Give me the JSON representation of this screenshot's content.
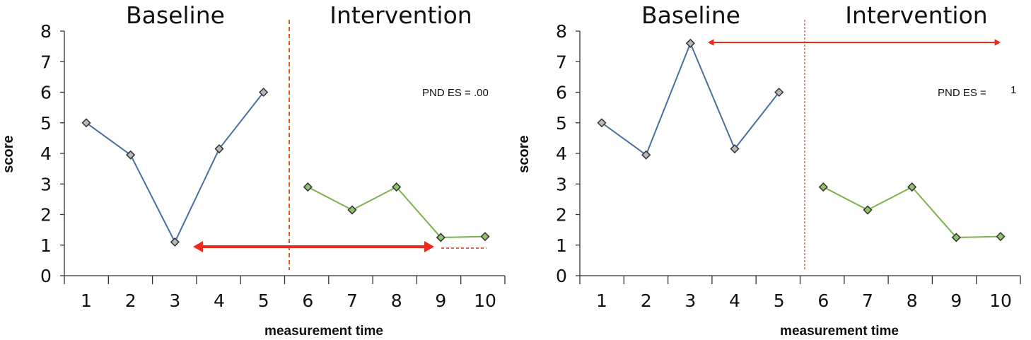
{
  "colors": {
    "baseline_line": "#4a6fa5",
    "intervention_line": "#7fb24a",
    "marker_fill_baseline": "#b8b8b8",
    "marker_fill_intervention": "#8fc26a",
    "phase_line_left": "#e06020",
    "phase_line_right": "#c02020",
    "arrow_red": "#ee2a1a",
    "axis": "#333333",
    "text": "#111111"
  },
  "chart_data": [
    {
      "type": "line",
      "title": "",
      "phases": [
        "Baseline",
        "Intervention"
      ],
      "xlabel": "measurement time",
      "ylabel": "score",
      "x_ticks": [
        "1",
        "2",
        "3",
        "4",
        "5",
        "6",
        "7",
        "8",
        "9",
        "10"
      ],
      "y_ticks": [
        "0",
        "1",
        "2",
        "3",
        "4",
        "5",
        "6",
        "7",
        "8"
      ],
      "ylim": [
        0,
        8
      ],
      "series": [
        {
          "x": [
            1,
            2,
            3,
            4,
            5
          ],
          "values": [
            5,
            3.95,
            1.1,
            4.15,
            6
          ]
        },
        {
          "x": [
            6,
            7,
            8,
            9,
            10
          ],
          "values": [
            2.9,
            2.15,
            2.9,
            1.25,
            1.28
          ]
        }
      ],
      "annotation": "PND ES = .00"
    },
    {
      "type": "line",
      "title": "",
      "phases": [
        "Baseline",
        "Intervention"
      ],
      "xlabel": "measurement time",
      "ylabel": "score",
      "x_ticks": [
        "1",
        "2",
        "3",
        "4",
        "5",
        "6",
        "7",
        "8",
        "9",
        "10"
      ],
      "y_ticks": [
        "0",
        "1",
        "2",
        "3",
        "4",
        "5",
        "6",
        "7",
        "8"
      ],
      "ylim": [
        0,
        8
      ],
      "series": [
        {
          "x": [
            1,
            2,
            3,
            4,
            5
          ],
          "values": [
            5,
            3.95,
            7.6,
            4.15,
            6
          ]
        },
        {
          "x": [
            6,
            7,
            8,
            9,
            10
          ],
          "values": [
            2.9,
            2.15,
            2.9,
            1.25,
            1.28
          ]
        }
      ],
      "annotation": "PND ES = ",
      "annotation_value": "1"
    }
  ]
}
